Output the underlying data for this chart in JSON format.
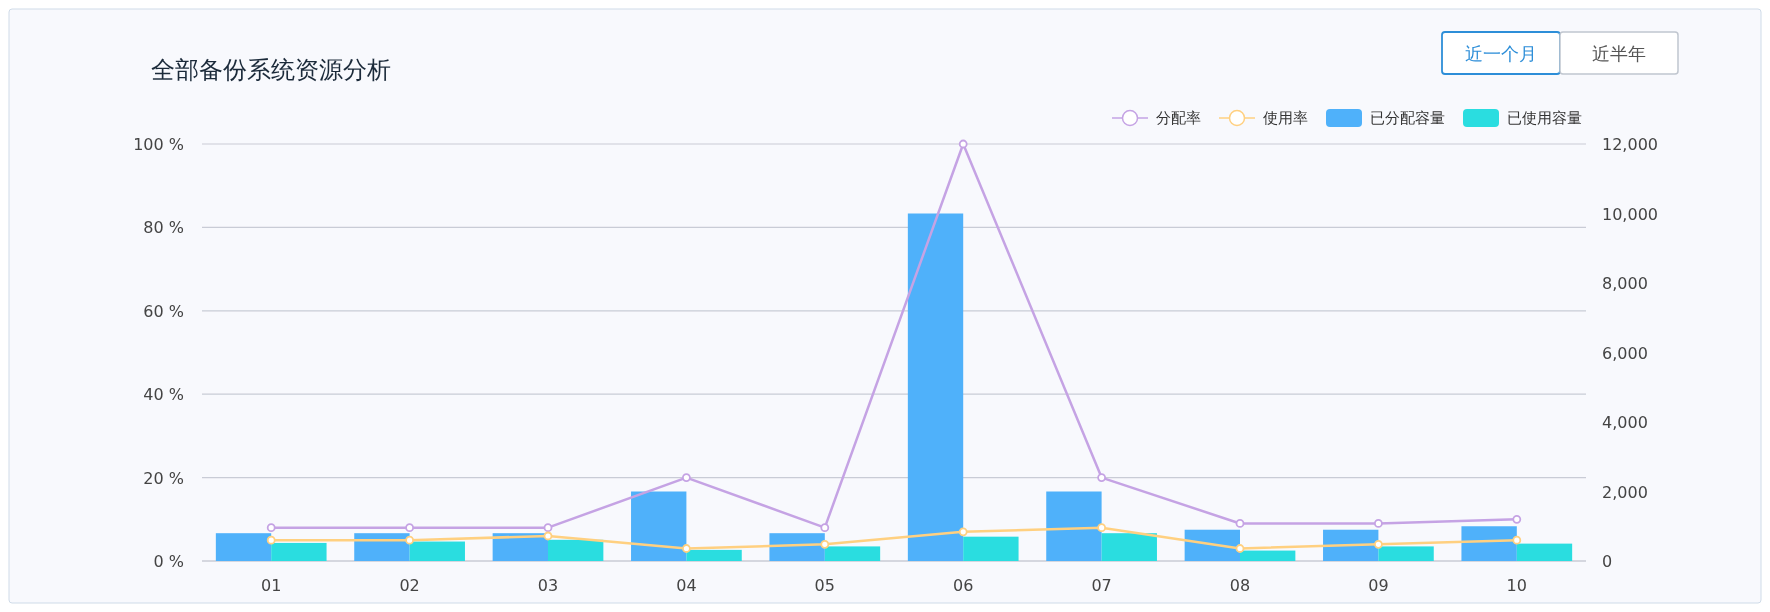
{
  "chart_data": {
    "type": "bar",
    "title": "全部备份系统资源分析",
    "annotations": [
      "近一个月",
      "近半年"
    ],
    "categories": [
      "01",
      "02",
      "03",
      "04",
      "05",
      "06",
      "07",
      "08",
      "09",
      "10"
    ],
    "series": [
      {
        "name": "分配率",
        "type": "line",
        "axis": "y",
        "color": "#c5a3e4",
        "values": [
          8,
          8,
          8,
          20,
          8,
          100,
          20,
          9,
          9,
          10
        ]
      },
      {
        "name": "使用率",
        "type": "line",
        "axis": "y",
        "color": "#ffd080",
        "values": [
          5,
          5,
          6,
          3,
          4,
          7,
          8,
          3,
          4,
          5
        ]
      },
      {
        "name": "已分配容量",
        "axis": "y2",
        "color": "#4fb1fa",
        "values": [
          800,
          800,
          800,
          2000,
          800,
          10000,
          2000,
          900,
          900,
          1000
        ]
      },
      {
        "name": "已使用容量",
        "axis": "y2",
        "color": "#2adde0",
        "values": [
          520,
          560,
          610,
          320,
          420,
          700,
          800,
          300,
          420,
          500
        ]
      }
    ],
    "ylim": [
      0,
      100
    ],
    "yticks": [
      {
        "value": 0,
        "label": "0 %"
      },
      {
        "value": 20,
        "label": "20 %"
      },
      {
        "value": 40,
        "label": "40 %"
      },
      {
        "value": 60,
        "label": "60 %"
      },
      {
        "value": 80,
        "label": "80 %"
      },
      {
        "value": 100,
        "label": "100 %"
      }
    ],
    "y2lim": [
      0,
      12000
    ],
    "y2ticks": [
      {
        "value": 0,
        "label": "0"
      },
      {
        "value": 2000,
        "label": "2,000"
      },
      {
        "value": 4000,
        "label": "4,000"
      },
      {
        "value": 6000,
        "label": "6,000"
      },
      {
        "value": 8000,
        "label": "8,000"
      },
      {
        "value": 10000,
        "label": "10,000"
      },
      {
        "value": 12000,
        "label": "12,000"
      }
    ],
    "grid": "y",
    "legend": "top right",
    "marker": "circle"
  }
}
